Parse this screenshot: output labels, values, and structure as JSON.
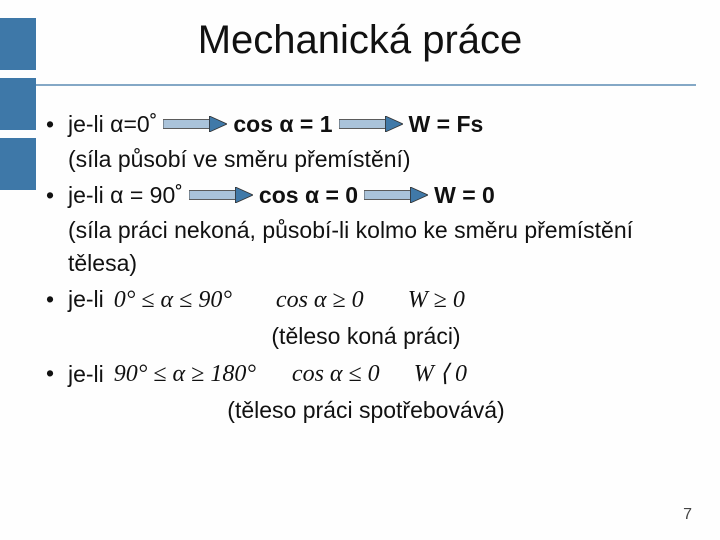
{
  "sidebar": {
    "block_color": "#3e78a8",
    "block_count": 3
  },
  "divider_color": "#84a8c6",
  "title": "Mechanická práce",
  "arrow": {
    "width": 64,
    "height": 16,
    "body_fill": "#aac3da",
    "head_fill": "#4079a8",
    "stroke": "#333"
  },
  "bullets": [
    {
      "type": "row-arrow",
      "parts": [
        "je-li α=0˚",
        "cos α = 1",
        "W = Fs"
      ],
      "bold_parts": [
        false,
        true,
        true
      ],
      "paren": "(síla působí ve směru přemístění)"
    },
    {
      "type": "row-arrow",
      "parts": [
        "je-li α = 90˚",
        "cos α = 0",
        "W = 0"
      ],
      "bold_parts": [
        false,
        true,
        true
      ],
      "paren": "(síla práci nekoná, působí-li kolmo ke směru přemístění tělesa)"
    },
    {
      "type": "row-formula",
      "lead": "je-li",
      "f1": "0° ≤ α ≤ 90°",
      "f2": "cos α ≥ 0",
      "f3": "W ≥ 0",
      "centered": "(těleso koná práci)"
    },
    {
      "type": "row-formula",
      "lead": "je-li",
      "f1": "90° ≤ α ≥ 180°",
      "f2": "cos α ≤ 0",
      "f3": "W ⟨ 0",
      "centered": "(těleso práci spotřebovává)"
    }
  ],
  "pagenum": "7"
}
